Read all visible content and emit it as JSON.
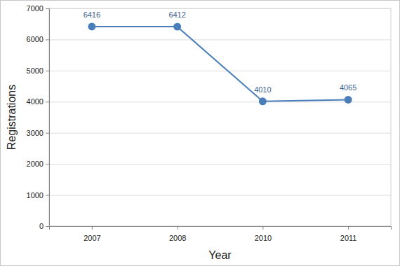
{
  "chart_data": {
    "type": "line",
    "x_label": "Year",
    "y_label": "Registrations",
    "categories": [
      "2007",
      "2008",
      "2010",
      "2011"
    ],
    "values": [
      6416,
      6412,
      4010,
      4065
    ],
    "color": "#4a7ebb",
    "marker": "circle",
    "ylim": [
      0,
      7000
    ],
    "yticks": [
      0,
      1000,
      2000,
      3000,
      4000,
      5000,
      6000,
      7000
    ],
    "grid": true,
    "data_labels": true
  }
}
